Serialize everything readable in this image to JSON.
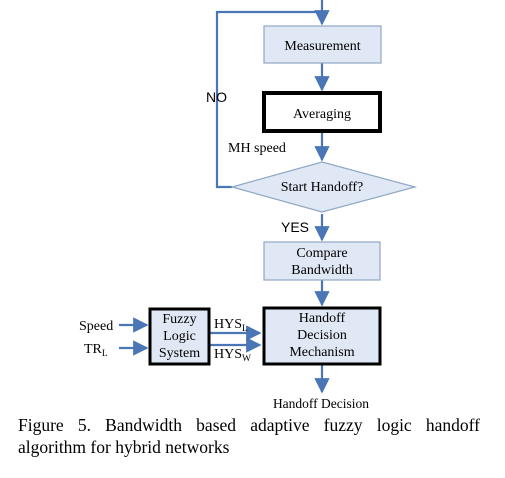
{
  "diagram": {
    "measurement": "Measurement",
    "averaging": "Averaging",
    "no_label": "NO",
    "mh_speed": "MH speed",
    "start_handoff": "Start Handoff?",
    "yes_label": "YES",
    "compare_line1": "Compare",
    "compare_line2": "Bandwidth",
    "speed_input": "Speed",
    "tr_input": "TR",
    "tr_sub": "L",
    "fuzzy_line1": "Fuzzy",
    "fuzzy_line2": "Logic",
    "fuzzy_line3": "System",
    "hys_l": "HYS",
    "hys_l_sub": "L",
    "hys_w": "HYS",
    "hys_w_sub": "W",
    "handoff_line1": "Handoff",
    "handoff_line2": "Decision",
    "handoff_line3": "Mechanism",
    "output": "Handoff Decision",
    "colors": {
      "box_fill": "#dfe8f4",
      "box_border_light": "#8fa7c4",
      "arrow": "#4a76b6",
      "heavy_border": "#000000"
    }
  },
  "caption": "Figure 5. Bandwidth based adaptive fuzzy logic handoff algorithm for hybrid networks"
}
